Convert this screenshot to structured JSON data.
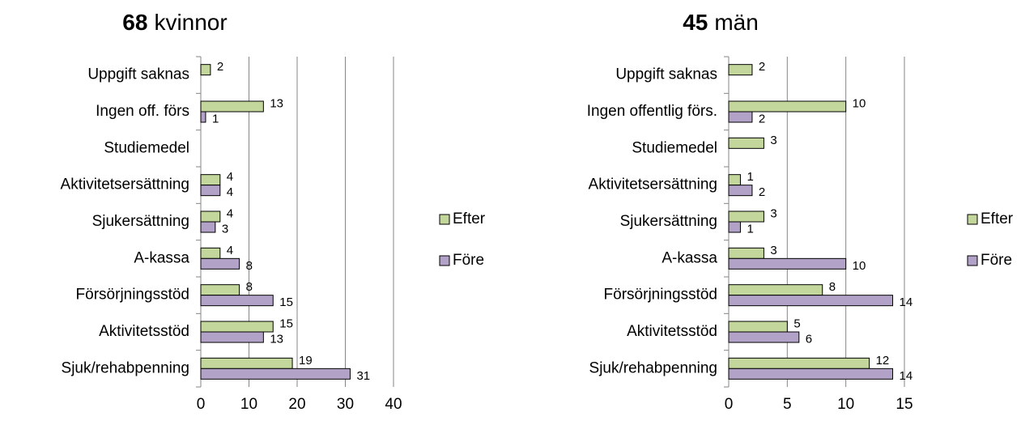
{
  "chart_data": [
    {
      "type": "bar",
      "orientation": "horizontal",
      "title_bold": "68",
      "title": "kvinnor",
      "categories": [
        "Uppgift saknas",
        "Ingen off. förs",
        "Studiemedel",
        "Aktivitetsersättning",
        "Sjukersättning",
        "A-kassa",
        "Försörjningsstöd",
        "Aktivitetsstöd",
        "Sjuk/rehabpenning"
      ],
      "series": [
        {
          "name": "Efter",
          "color": "#c3d69b",
          "values": [
            2,
            13,
            null,
            4,
            4,
            4,
            8,
            15,
            19
          ]
        },
        {
          "name": "Före",
          "color": "#b3a2c7",
          "values": [
            null,
            1,
            null,
            4,
            3,
            8,
            15,
            13,
            31
          ]
        }
      ],
      "xlim": [
        0,
        40
      ],
      "xticks": [
        0,
        10,
        20,
        30,
        40
      ],
      "grid": true,
      "legend": "right"
    },
    {
      "type": "bar",
      "orientation": "horizontal",
      "title_bold": "45",
      "title": "män",
      "categories": [
        "Uppgift saknas",
        "Ingen offentlig förs.",
        "Studiemedel",
        "Aktivitetsersättning",
        "Sjukersättning",
        "A-kassa",
        "Försörjningsstöd",
        "Aktivitetsstöd",
        "Sjuk/rehabpenning"
      ],
      "series": [
        {
          "name": "Efter",
          "color": "#c3d69b",
          "values": [
            2,
            10,
            3,
            1,
            3,
            3,
            8,
            5,
            12
          ]
        },
        {
          "name": "Före",
          "color": "#b3a2c7",
          "values": [
            null,
            2,
            null,
            2,
            1,
            10,
            14,
            6,
            14
          ]
        }
      ],
      "xlim": [
        0,
        15
      ],
      "xticks": [
        0,
        5,
        10,
        15
      ],
      "grid": true,
      "legend": "right"
    }
  ]
}
